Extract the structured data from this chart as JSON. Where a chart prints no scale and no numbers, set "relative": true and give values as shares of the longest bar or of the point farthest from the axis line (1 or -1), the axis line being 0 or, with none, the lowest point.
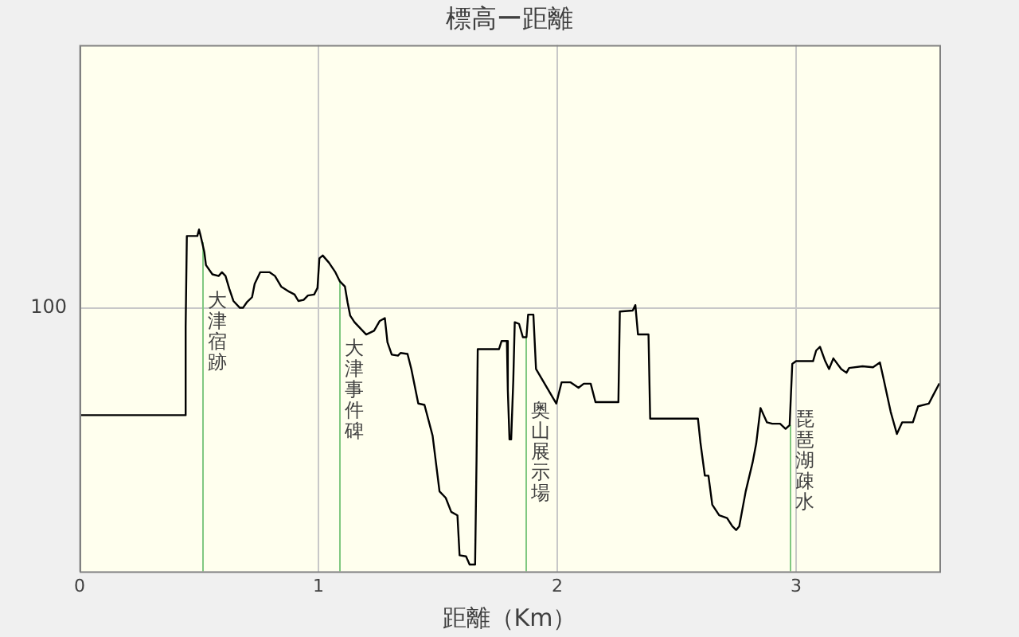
{
  "chart_data": {
    "type": "line",
    "title": "標高ー距離",
    "xlabel": "距離（Km）",
    "relative": true,
    "xlim": [
      0,
      3.6
    ],
    "xticks": [
      0,
      1,
      2,
      3
    ],
    "grid": "x",
    "legend": false,
    "marker": "none",
    "line_style": "solid",
    "x": [
      0,
      0.442,
      0.444,
      0.449,
      0.493,
      0.5,
      0.507,
      0.522,
      0.529,
      0.556,
      0.582,
      0.596,
      0.611,
      0.627,
      0.644,
      0.671,
      0.684,
      0.7,
      0.722,
      0.733,
      0.756,
      0.796,
      0.818,
      0.844,
      0.878,
      0.9,
      0.916,
      0.938,
      0.956,
      0.982,
      0.996,
      1.004,
      1.018,
      1.044,
      1.071,
      1.089,
      1.111,
      1.122,
      1.133,
      1.151,
      1.2,
      1.233,
      1.256,
      1.278,
      1.289,
      1.307,
      1.333,
      1.344,
      1.373,
      1.389,
      1.418,
      1.444,
      1.478,
      1.507,
      1.533,
      1.556,
      1.582,
      1.591,
      1.618,
      1.633,
      1.656,
      1.662,
      1.667,
      1.756,
      1.767,
      1.789,
      1.793,
      1.8,
      1.807,
      1.816,
      1.822,
      1.84,
      1.856,
      1.871,
      1.878,
      1.9,
      1.904,
      1.911,
      1.996,
      2.018,
      2.056,
      2.089,
      2.111,
      2.14,
      2.16,
      2.256,
      2.262,
      2.316,
      2.327,
      2.338,
      2.382,
      2.389,
      2.589,
      2.6,
      2.618,
      2.633,
      2.649,
      2.678,
      2.711,
      2.733,
      2.749,
      2.762,
      2.789,
      2.818,
      2.833,
      2.851,
      2.878,
      2.9,
      2.933,
      2.956,
      2.973,
      2.984,
      3.0,
      3.071,
      3.084,
      3.1,
      3.122,
      3.138,
      3.156,
      3.189,
      3.211,
      3.222,
      3.278,
      3.322,
      3.351,
      3.367,
      3.396,
      3.422,
      3.444,
      3.489,
      3.511,
      3.556,
      3.573,
      3.6
    ],
    "series": [
      {
        "color": "#000000",
        "values": [
          0.457,
          0.457,
          0.716,
          0.981,
          0.981,
          1.0,
          0.981,
          0.935,
          0.896,
          0.869,
          0.864,
          0.875,
          0.864,
          0.826,
          0.791,
          0.771,
          0.771,
          0.787,
          0.802,
          0.841,
          0.875,
          0.875,
          0.864,
          0.833,
          0.818,
          0.81,
          0.791,
          0.794,
          0.807,
          0.81,
          0.829,
          0.916,
          0.924,
          0.903,
          0.875,
          0.849,
          0.833,
          0.787,
          0.748,
          0.729,
          0.693,
          0.704,
          0.732,
          0.741,
          0.67,
          0.634,
          0.631,
          0.639,
          0.636,
          0.592,
          0.491,
          0.487,
          0.397,
          0.234,
          0.215,
          0.174,
          0.164,
          0.047,
          0.044,
          0.02,
          0.02,
          0.327,
          0.65,
          0.65,
          0.674,
          0.674,
          0.53,
          0.386,
          0.386,
          0.561,
          0.729,
          0.724,
          0.685,
          0.685,
          0.751,
          0.751,
          0.751,
          0.592,
          0.491,
          0.553,
          0.553,
          0.537,
          0.549,
          0.549,
          0.495,
          0.495,
          0.76,
          0.763,
          0.779,
          0.693,
          0.693,
          0.447,
          0.447,
          0.374,
          0.28,
          0.28,
          0.195,
          0.164,
          0.156,
          0.132,
          0.121,
          0.132,
          0.234,
          0.319,
          0.374,
          0.478,
          0.436,
          0.432,
          0.432,
          0.417,
          0.428,
          0.607,
          0.615,
          0.615,
          0.646,
          0.657,
          0.615,
          0.592,
          0.623,
          0.592,
          0.581,
          0.595,
          0.6,
          0.597,
          0.611,
          0.561,
          0.467,
          0.402,
          0.436,
          0.436,
          0.483,
          0.491,
          0.514,
          0.55
        ]
      }
    ],
    "annotations": [
      "100"
    ],
    "ref_lines": [
      {
        "axis": "y",
        "value": 0.771,
        "color": "#c8c8c8"
      },
      {
        "axis": "x",
        "value": 0.513,
        "label": "大津宿跡",
        "color": "#80c880"
      },
      {
        "axis": "x",
        "value": 1.087,
        "label": "大津事件碑",
        "color": "#80c880"
      },
      {
        "axis": "x",
        "value": 1.867,
        "label": "奥山展示場",
        "color": "#80c880"
      },
      {
        "axis": "x",
        "value": 2.973,
        "label": "琵琶湖疎水",
        "color": "#80c880"
      }
    ]
  }
}
